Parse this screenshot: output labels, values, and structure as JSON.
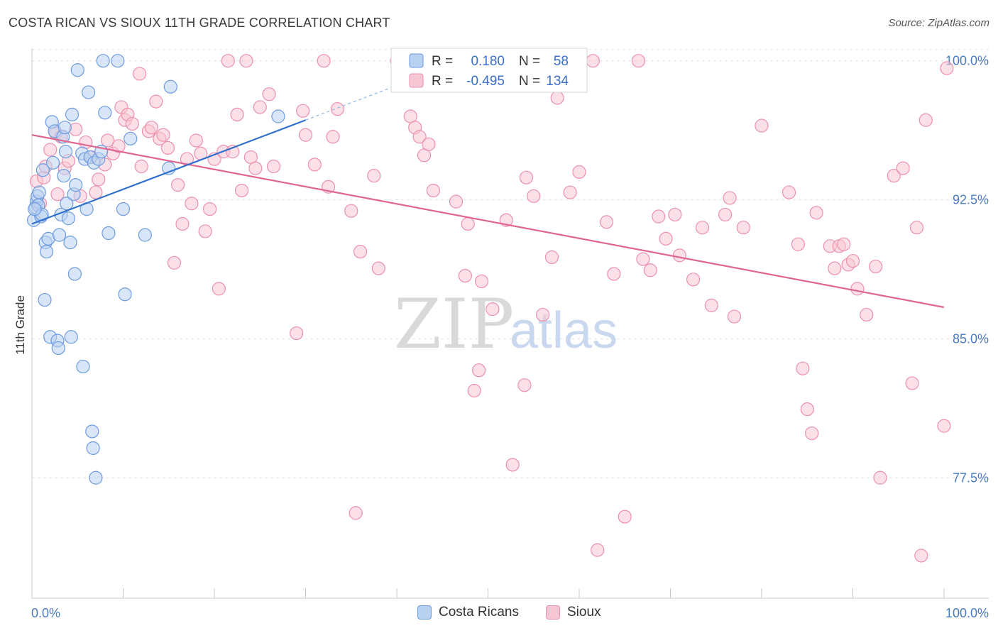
{
  "title": "COSTA RICAN VS SIOUX 11TH GRADE CORRELATION CHART",
  "source": "Source: ZipAtlas.com",
  "watermark": {
    "zip": "ZIP",
    "atlas": "atlas"
  },
  "legend": [
    {
      "r_label": "R =",
      "r_value": "0.180",
      "n_label": "N =",
      "n_value": "58"
    },
    {
      "r_label": "R =",
      "r_value": "-0.495",
      "n_label": "N =",
      "n_value": "134"
    }
  ],
  "colors": {
    "blue_fill": "#b9d1f0",
    "blue_stroke": "#6d9be0",
    "blue_line": "#2f6fce",
    "pink_fill": "#f7c6d4",
    "pink_stroke": "#ec90ad",
    "pink_line": "#e0658f",
    "tick_text": "#4a7cc4",
    "grid": "#e2e2e2"
  },
  "chart_data": {
    "type": "scatter",
    "title": "COSTA RICAN VS SIOUX 11TH GRADE CORRELATION CHART",
    "xlabel": "",
    "ylabel": "11th Grade",
    "xlim": [
      0,
      100
    ],
    "ylim": [
      71.0,
      100.6
    ],
    "x_tick_labels": [
      "0.0%",
      "100.0%"
    ],
    "y_ticks": [
      77.5,
      85.0,
      92.5,
      100.0
    ],
    "y_tick_labels": [
      "77.5%",
      "85.0%",
      "92.5%",
      "100.0%"
    ],
    "grid": true,
    "legend_position": "top-center",
    "series": [
      {
        "name": "Costa Ricans",
        "r": 0.18,
        "n": 58,
        "trend": {
          "x": [
            0,
            30
          ],
          "y": [
            91.2,
            96.8
          ],
          "dashed_extension_to": [
            45,
            99.6
          ]
        },
        "points": [
          [
            0.2,
            91.4
          ],
          [
            0.4,
            92.1
          ],
          [
            0.5,
            92.4
          ],
          [
            0.6,
            92.7
          ],
          [
            0.7,
            92.2
          ],
          [
            0.8,
            92.9
          ],
          [
            1.0,
            91.6
          ],
          [
            1.1,
            91.7
          ],
          [
            1.2,
            94.1
          ],
          [
            1.4,
            87.1
          ],
          [
            1.5,
            90.2
          ],
          [
            1.6,
            89.7
          ],
          [
            1.8,
            90.4
          ],
          [
            2.0,
            85.1
          ],
          [
            2.2,
            96.7
          ],
          [
            2.3,
            94.5
          ],
          [
            2.5,
            96.2
          ],
          [
            2.8,
            84.9
          ],
          [
            2.9,
            84.5
          ],
          [
            3.0,
            90.6
          ],
          [
            3.2,
            91.7
          ],
          [
            3.4,
            95.9
          ],
          [
            3.5,
            93.8
          ],
          [
            3.6,
            96.4
          ],
          [
            3.7,
            95.1
          ],
          [
            3.8,
            92.3
          ],
          [
            4.0,
            91.5
          ],
          [
            4.2,
            90.2
          ],
          [
            4.3,
            85.1
          ],
          [
            4.4,
            97.1
          ],
          [
            4.6,
            92.8
          ],
          [
            4.7,
            88.5
          ],
          [
            4.8,
            93.3
          ],
          [
            5.0,
            99.5
          ],
          [
            5.5,
            95.0
          ],
          [
            5.6,
            83.5
          ],
          [
            5.8,
            94.7
          ],
          [
            6.0,
            92.0
          ],
          [
            6.2,
            98.3
          ],
          [
            6.4,
            94.8
          ],
          [
            6.6,
            80.0
          ],
          [
            6.7,
            79.1
          ],
          [
            6.8,
            94.5
          ],
          [
            7.0,
            77.5
          ],
          [
            7.3,
            94.7
          ],
          [
            7.6,
            95.1
          ],
          [
            7.8,
            100.0
          ],
          [
            8.0,
            97.2
          ],
          [
            8.4,
            90.7
          ],
          [
            9.4,
            100.0
          ],
          [
            10.0,
            92.0
          ],
          [
            10.2,
            87.4
          ],
          [
            10.8,
            95.8
          ],
          [
            12.4,
            90.6
          ],
          [
            15.0,
            94.2
          ],
          [
            15.2,
            98.6
          ],
          [
            27.0,
            97.0
          ],
          [
            0.3,
            92.0
          ]
        ]
      },
      {
        "name": "Sioux",
        "r": -0.495,
        "n": 134,
        "trend": {
          "x": [
            0,
            100
          ],
          "y": [
            96.0,
            86.7
          ]
        },
        "points": [
          [
            0.5,
            93.5
          ],
          [
            0.9,
            92.3
          ],
          [
            1.3,
            93.7
          ],
          [
            1.5,
            94.3
          ],
          [
            2.0,
            95.2
          ],
          [
            2.6,
            96.1
          ],
          [
            2.8,
            92.8
          ],
          [
            3.2,
            95.9
          ],
          [
            3.6,
            94.2
          ],
          [
            4.0,
            94.6
          ],
          [
            4.8,
            96.3
          ],
          [
            5.3,
            92.7
          ],
          [
            5.9,
            95.6
          ],
          [
            6.5,
            94.8
          ],
          [
            7.0,
            92.9
          ],
          [
            7.3,
            93.6
          ],
          [
            8.0,
            94.4
          ],
          [
            8.3,
            95.7
          ],
          [
            8.9,
            95.0
          ],
          [
            9.5,
            95.4
          ],
          [
            9.8,
            97.5
          ],
          [
            10.2,
            96.8
          ],
          [
            10.5,
            97.1
          ],
          [
            11.0,
            96.6
          ],
          [
            11.8,
            99.3
          ],
          [
            12.0,
            94.3
          ],
          [
            12.8,
            96.2
          ],
          [
            13.1,
            96.4
          ],
          [
            13.6,
            97.8
          ],
          [
            14.0,
            95.8
          ],
          [
            14.4,
            96.0
          ],
          [
            14.9,
            95.3
          ],
          [
            15.6,
            89.1
          ],
          [
            16.0,
            93.3
          ],
          [
            16.5,
            91.2
          ],
          [
            17.0,
            94.7
          ],
          [
            17.5,
            92.3
          ],
          [
            18.0,
            95.7
          ],
          [
            18.5,
            95.0
          ],
          [
            19.0,
            90.8
          ],
          [
            19.5,
            92.0
          ],
          [
            20.0,
            94.7
          ],
          [
            20.5,
            87.7
          ],
          [
            21.0,
            95.1
          ],
          [
            21.5,
            100.0
          ],
          [
            22.0,
            95.1
          ],
          [
            22.5,
            97.1
          ],
          [
            23.0,
            93.0
          ],
          [
            23.5,
            100.0
          ],
          [
            24.0,
            94.8
          ],
          [
            24.5,
            94.2
          ],
          [
            25.0,
            97.5
          ],
          [
            26.0,
            98.2
          ],
          [
            26.5,
            94.3
          ],
          [
            29.0,
            85.3
          ],
          [
            29.7,
            97.3
          ],
          [
            30.0,
            96.0
          ],
          [
            31.0,
            94.4
          ],
          [
            32.0,
            100.0
          ],
          [
            32.5,
            93.2
          ],
          [
            33.0,
            95.9
          ],
          [
            33.5,
            97.4
          ],
          [
            35.0,
            91.9
          ],
          [
            35.5,
            75.6
          ],
          [
            36.0,
            89.7
          ],
          [
            37.5,
            93.8
          ],
          [
            38.0,
            88.8
          ],
          [
            40.0,
            100.0
          ],
          [
            41.5,
            97.0
          ],
          [
            42.0,
            96.4
          ],
          [
            42.5,
            95.9
          ],
          [
            43.0,
            94.9
          ],
          [
            43.5,
            95.5
          ],
          [
            44.0,
            93.0
          ],
          [
            45.0,
            99.5
          ],
          [
            46.5,
            92.4
          ],
          [
            47.5,
            88.4
          ],
          [
            47.8,
            91.2
          ],
          [
            48.5,
            82.2
          ],
          [
            49.0,
            83.3
          ],
          [
            49.3,
            88.1
          ],
          [
            50.5,
            86.6
          ],
          [
            52.0,
            91.4
          ],
          [
            52.7,
            78.2
          ],
          [
            54.0,
            82.5
          ],
          [
            54.2,
            93.7
          ],
          [
            55.0,
            92.7
          ],
          [
            56.0,
            86.3
          ],
          [
            57.0,
            89.4
          ],
          [
            57.6,
            98.0
          ],
          [
            59.0,
            92.9
          ],
          [
            60.0,
            94.0
          ],
          [
            61.5,
            100.0
          ],
          [
            62.0,
            73.6
          ],
          [
            63.0,
            91.3
          ],
          [
            63.8,
            88.5
          ],
          [
            65.0,
            75.4
          ],
          [
            66.5,
            100.0
          ],
          [
            67.0,
            89.3
          ],
          [
            67.8,
            88.7
          ],
          [
            68.7,
            91.6
          ],
          [
            69.5,
            90.4
          ],
          [
            70.5,
            91.7
          ],
          [
            71.0,
            89.5
          ],
          [
            72.5,
            88.2
          ],
          [
            73.5,
            91.0
          ],
          [
            74.5,
            86.8
          ],
          [
            76.0,
            91.7
          ],
          [
            76.5,
            92.6
          ],
          [
            77.0,
            86.2
          ],
          [
            78.0,
            91.0
          ],
          [
            80.0,
            96.5
          ],
          [
            83.0,
            92.9
          ],
          [
            84.0,
            90.1
          ],
          [
            84.5,
            83.4
          ],
          [
            85.0,
            81.2
          ],
          [
            85.5,
            79.9
          ],
          [
            86.0,
            91.8
          ],
          [
            87.5,
            90.0
          ],
          [
            88.0,
            88.8
          ],
          [
            88.5,
            90.0
          ],
          [
            89.0,
            90.1
          ],
          [
            89.5,
            89.0
          ],
          [
            90.0,
            89.2
          ],
          [
            90.5,
            87.7
          ],
          [
            91.5,
            86.3
          ],
          [
            92.5,
            88.9
          ],
          [
            93.0,
            77.5
          ],
          [
            94.5,
            93.8
          ],
          [
            95.5,
            94.2
          ],
          [
            96.5,
            82.6
          ],
          [
            97.0,
            91.0
          ],
          [
            97.5,
            73.3
          ],
          [
            98.0,
            96.8
          ],
          [
            100.0,
            80.3
          ],
          [
            100.3,
            99.6
          ]
        ]
      }
    ]
  }
}
